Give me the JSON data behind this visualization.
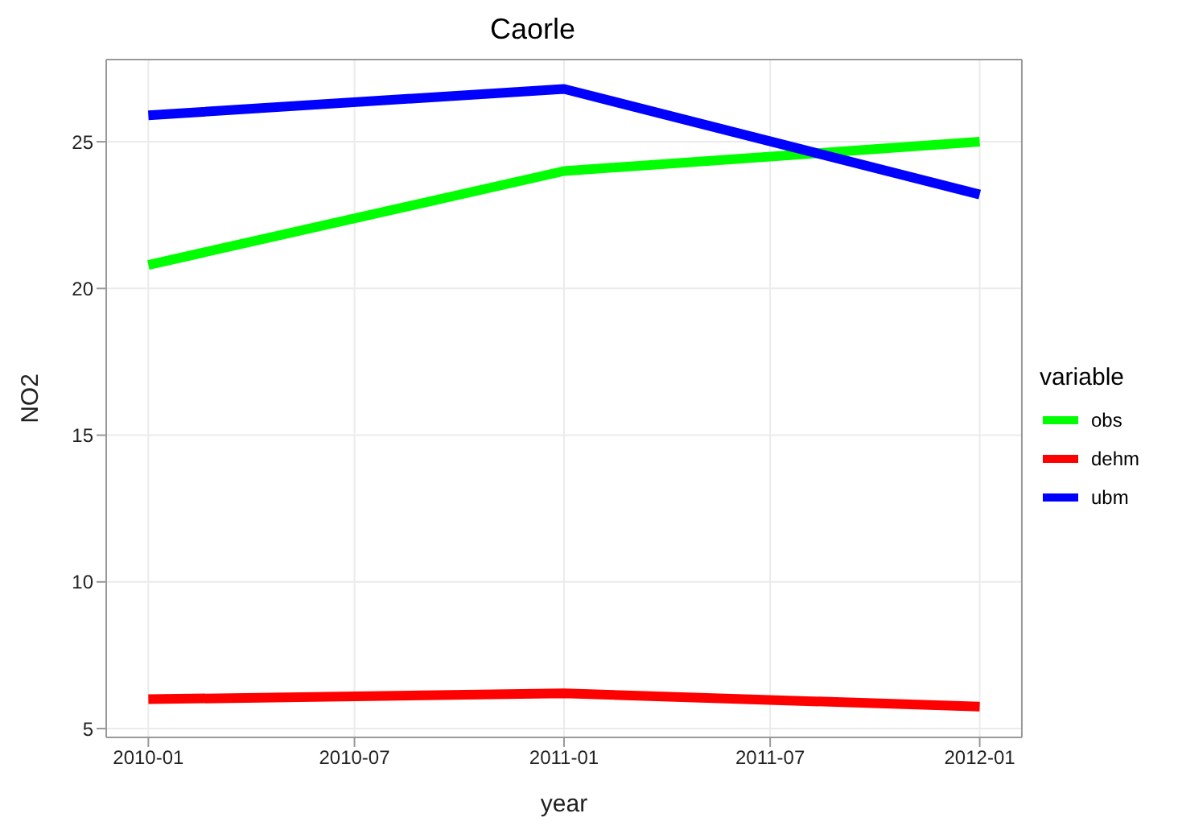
{
  "chart_data": {
    "type": "line",
    "title": "Caorle",
    "xlabel": "year",
    "ylabel": "NO2",
    "legend_title": "variable",
    "x": [
      "2010-01",
      "2011-01",
      "2012-01"
    ],
    "series": [
      {
        "name": "obs",
        "color": "#00ff00",
        "values": [
          20.8,
          24.0,
          25.0
        ]
      },
      {
        "name": "dehm",
        "color": "#ff0000",
        "values": [
          6.0,
          6.2,
          5.75
        ]
      },
      {
        "name": "ubm",
        "color": "#0000ff",
        "values": [
          25.9,
          26.8,
          23.2
        ]
      }
    ],
    "xlim": [
      "2009-11-25",
      "2012-02-07"
    ],
    "xticks": [
      "2010-01",
      "2010-07",
      "2011-01",
      "2011-07",
      "2012-01"
    ],
    "ylim": [
      4.7,
      27.8
    ],
    "yticks": [
      5,
      10,
      15,
      20,
      25
    ],
    "grid": true,
    "legend": "right",
    "marker": "none",
    "line_style": "solid"
  }
}
